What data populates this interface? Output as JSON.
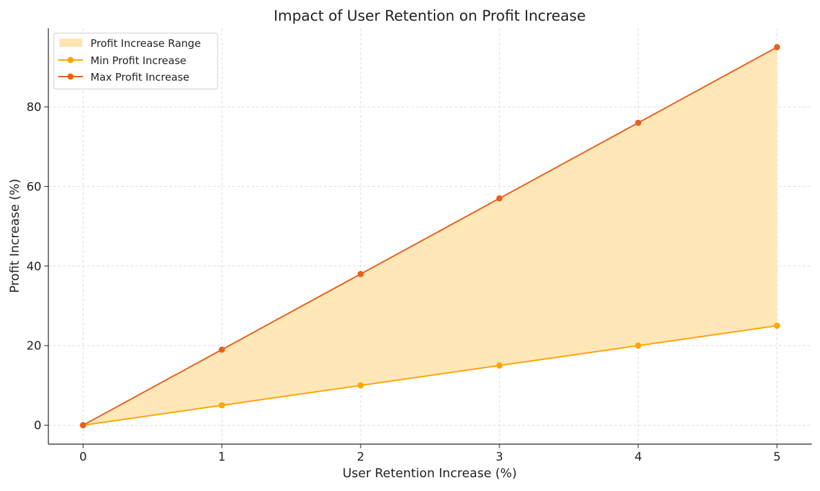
{
  "chart_data": {
    "type": "area",
    "title": "Impact of User Retention on Profit Increase",
    "xlabel": "User Retention Increase (%)",
    "ylabel": "Profit Increase (%)",
    "x": [
      0,
      1,
      2,
      3,
      4,
      5
    ],
    "xticks": [
      0,
      1,
      2,
      3,
      4,
      5
    ],
    "yticks": [
      0,
      20,
      40,
      60,
      80
    ],
    "xlim": [
      -0.25,
      5.25
    ],
    "ylim": [
      -4.75,
      99.75
    ],
    "grid": true,
    "legend_position": "top-left",
    "series": [
      {
        "name": "Min Profit Increase",
        "values": [
          0,
          5,
          10,
          15,
          20,
          25
        ],
        "color": "#FFA500"
      },
      {
        "name": "Max Profit Increase",
        "values": [
          0,
          19,
          38,
          57,
          76,
          95
        ],
        "color": "#E8601C"
      }
    ],
    "fill": {
      "name": "Profit Increase Range",
      "color": "#FFE4B0"
    }
  }
}
